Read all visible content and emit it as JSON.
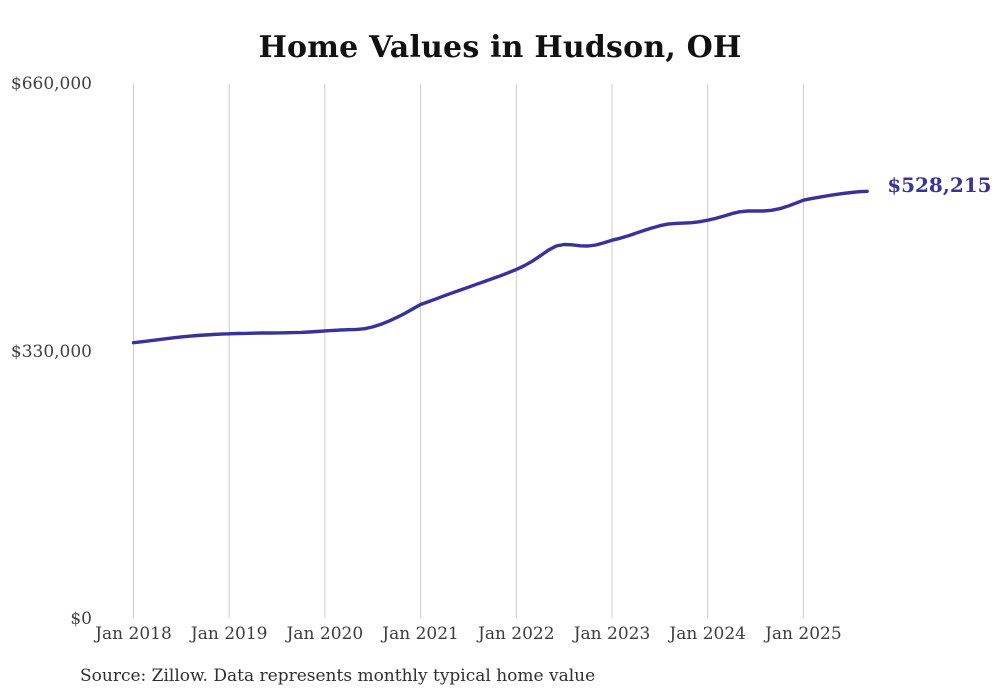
{
  "page": {
    "source_note": "Source: Zillow. Data represents monthly typical home value"
  },
  "chart_data": {
    "type": "line",
    "title": "Home Values in Hudson, OH",
    "series_name": "Monthly typical home value",
    "end_label": "$528,215",
    "final_value": 528215,
    "line_color": "#38329b",
    "grid_color": "#cccccc",
    "ylim": [
      0,
      660000
    ],
    "grid": "vertical-only",
    "legend_position": "none",
    "y_ticks": [
      {
        "value": 660000,
        "label": "$660,000"
      },
      {
        "value": 330000,
        "label": "$330,000"
      },
      {
        "value": 0,
        "label": "$0"
      }
    ],
    "x_tick_labels": [
      "Jan 2018",
      "Jan 2019",
      "Jan 2020",
      "Jan 2021",
      "Jan 2022",
      "Jan 2023",
      "Jan 2024",
      "Jan 2025"
    ],
    "x": [
      "2018-01",
      "2018-02",
      "2018-03",
      "2018-04",
      "2018-05",
      "2018-06",
      "2018-07",
      "2018-08",
      "2018-09",
      "2018-10",
      "2018-11",
      "2018-12",
      "2019-01",
      "2019-02",
      "2019-03",
      "2019-04",
      "2019-05",
      "2019-06",
      "2019-07",
      "2019-08",
      "2019-09",
      "2019-10",
      "2019-11",
      "2019-12",
      "2020-01",
      "2020-02",
      "2020-03",
      "2020-04",
      "2020-05",
      "2020-06",
      "2020-07",
      "2020-08",
      "2020-09",
      "2020-10",
      "2020-11",
      "2020-12",
      "2021-01",
      "2021-02",
      "2021-03",
      "2021-04",
      "2021-05",
      "2021-06",
      "2021-07",
      "2021-08",
      "2021-09",
      "2021-10",
      "2021-11",
      "2021-12",
      "2022-01",
      "2022-02",
      "2022-03",
      "2022-04",
      "2022-05",
      "2022-06",
      "2022-07",
      "2022-08",
      "2022-09",
      "2022-10",
      "2022-11",
      "2022-12",
      "2023-01",
      "2023-02",
      "2023-03",
      "2023-04",
      "2023-05",
      "2023-06",
      "2023-07",
      "2023-08",
      "2023-09",
      "2023-10",
      "2023-11",
      "2023-12",
      "2024-01",
      "2024-02",
      "2024-03",
      "2024-04",
      "2024-05",
      "2024-06",
      "2024-07",
      "2024-08",
      "2024-09",
      "2024-10",
      "2024-11",
      "2024-12",
      "2025-01",
      "2025-02",
      "2025-03",
      "2025-04",
      "2025-05",
      "2025-06",
      "2025-07",
      "2025-08",
      "2025-09"
    ],
    "values": [
      341500,
      342600,
      343800,
      345000,
      346300,
      347500,
      348600,
      349500,
      350300,
      351000,
      351600,
      352100,
      352500,
      352800,
      353000,
      353200,
      353400,
      353500,
      353600,
      353700,
      353900,
      354200,
      354700,
      355300,
      356000,
      356600,
      357100,
      357500,
      357900,
      358800,
      361000,
      364000,
      368000,
      372500,
      377500,
      383000,
      388600,
      392200,
      395800,
      399400,
      403000,
      406500,
      410000,
      413500,
      417000,
      420500,
      424000,
      427800,
      431800,
      436500,
      442000,
      448500,
      455500,
      460800,
      462600,
      462200,
      461000,
      460800,
      462000,
      464800,
      467900,
      470300,
      473200,
      476500,
      479900,
      483000,
      485800,
      487800,
      488600,
      489000,
      489500,
      490800,
      492600,
      494800,
      497600,
      500600,
      502900,
      503900,
      504100,
      503900,
      504800,
      506800,
      509800,
      513400,
      517300,
      519200,
      521000,
      522700,
      524200,
      525600,
      526800,
      527700,
      528215
    ]
  }
}
